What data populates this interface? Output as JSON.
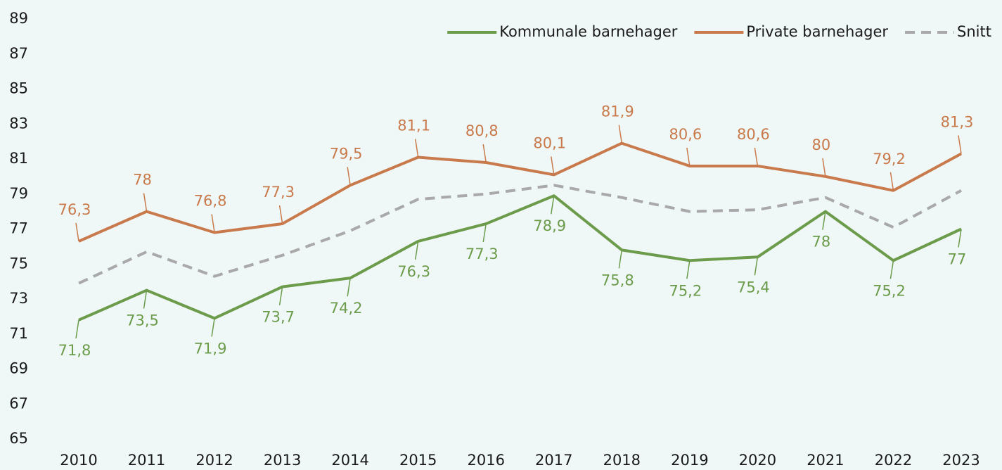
{
  "chart_data": {
    "type": "line",
    "categories": [
      "2010",
      "2011",
      "2012",
      "2013",
      "2014",
      "2015",
      "2016",
      "2017",
      "2018",
      "2019",
      "2020",
      "2021",
      "2022",
      "2023"
    ],
    "series": [
      {
        "name": "Kommunale barnehager",
        "color": "#6b9b4b",
        "dash": false,
        "label_side": "below",
        "values": [
          71.8,
          73.5,
          71.9,
          73.7,
          74.2,
          76.3,
          77.3,
          78.9,
          75.8,
          75.2,
          75.4,
          78,
          75.2,
          77
        ],
        "value_labels": [
          "71,8",
          "73,5",
          "71,9",
          "73,7",
          "74,2",
          "76,3",
          "77,3",
          "78,9",
          "75,8",
          "75,2",
          "75,4",
          "78",
          "75,2",
          "77"
        ]
      },
      {
        "name": "Private barnehager",
        "color": "#c97a4c",
        "dash": false,
        "label_side": "above",
        "values": [
          76.3,
          78,
          76.8,
          77.3,
          79.5,
          81.1,
          80.8,
          80.1,
          81.9,
          80.6,
          80.6,
          80,
          79.2,
          81.3
        ],
        "value_labels": [
          "76,3",
          "78",
          "76,8",
          "77,3",
          "79,5",
          "81,1",
          "80,8",
          "80,1",
          "81,9",
          "80,6",
          "80,6",
          "80",
          "79,2",
          "81,3"
        ]
      },
      {
        "name": "Snitt",
        "color": "#a9a9a9",
        "dash": true,
        "values": [
          73.9,
          75.7,
          74.3,
          75.5,
          76.9,
          78.7,
          79.0,
          79.5,
          78.8,
          78.0,
          78.1,
          78.8,
          77.1,
          79.2
        ]
      }
    ],
    "ylim": [
      65,
      89
    ],
    "yticks": [
      65,
      67,
      69,
      71,
      73,
      75,
      77,
      79,
      81,
      83,
      85,
      87,
      89
    ],
    "grid": false,
    "legend": "top-right"
  }
}
